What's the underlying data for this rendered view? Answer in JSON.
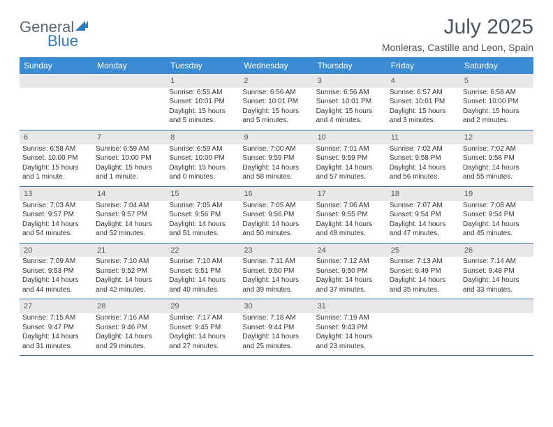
{
  "brand": {
    "part1": "General",
    "part2": "Blue"
  },
  "title": "July 2025",
  "location": "Monleras, Castille and Leon, Spain",
  "colors": {
    "header_bg": "#3b8bd4",
    "header_text": "#ffffff",
    "daynum_bg": "#e8e8e8",
    "separator": "#2e6fa8",
    "text": "#333333",
    "title_text": "#4a5560",
    "brand_gray": "#5a6670",
    "brand_blue": "#2e7cc0",
    "page_bg": "#ffffff"
  },
  "weekdays": [
    "Sunday",
    "Monday",
    "Tuesday",
    "Wednesday",
    "Thursday",
    "Friday",
    "Saturday"
  ],
  "weeks": [
    [
      null,
      null,
      {
        "n": "1",
        "sunrise": "Sunrise: 6:55 AM",
        "sunset": "Sunset: 10:01 PM",
        "daylight": "Daylight: 15 hours and 5 minutes."
      },
      {
        "n": "2",
        "sunrise": "Sunrise: 6:56 AM",
        "sunset": "Sunset: 10:01 PM",
        "daylight": "Daylight: 15 hours and 5 minutes."
      },
      {
        "n": "3",
        "sunrise": "Sunrise: 6:56 AM",
        "sunset": "Sunset: 10:01 PM",
        "daylight": "Daylight: 15 hours and 4 minutes."
      },
      {
        "n": "4",
        "sunrise": "Sunrise: 6:57 AM",
        "sunset": "Sunset: 10:01 PM",
        "daylight": "Daylight: 15 hours and 3 minutes."
      },
      {
        "n": "5",
        "sunrise": "Sunrise: 6:58 AM",
        "sunset": "Sunset: 10:00 PM",
        "daylight": "Daylight: 15 hours and 2 minutes."
      }
    ],
    [
      {
        "n": "6",
        "sunrise": "Sunrise: 6:58 AM",
        "sunset": "Sunset: 10:00 PM",
        "daylight": "Daylight: 15 hours and 1 minute."
      },
      {
        "n": "7",
        "sunrise": "Sunrise: 6:59 AM",
        "sunset": "Sunset: 10:00 PM",
        "daylight": "Daylight: 15 hours and 1 minute."
      },
      {
        "n": "8",
        "sunrise": "Sunrise: 6:59 AM",
        "sunset": "Sunset: 10:00 PM",
        "daylight": "Daylight: 15 hours and 0 minutes."
      },
      {
        "n": "9",
        "sunrise": "Sunrise: 7:00 AM",
        "sunset": "Sunset: 9:59 PM",
        "daylight": "Daylight: 14 hours and 58 minutes."
      },
      {
        "n": "10",
        "sunrise": "Sunrise: 7:01 AM",
        "sunset": "Sunset: 9:59 PM",
        "daylight": "Daylight: 14 hours and 57 minutes."
      },
      {
        "n": "11",
        "sunrise": "Sunrise: 7:02 AM",
        "sunset": "Sunset: 9:58 PM",
        "daylight": "Daylight: 14 hours and 56 minutes."
      },
      {
        "n": "12",
        "sunrise": "Sunrise: 7:02 AM",
        "sunset": "Sunset: 9:58 PM",
        "daylight": "Daylight: 14 hours and 55 minutes."
      }
    ],
    [
      {
        "n": "13",
        "sunrise": "Sunrise: 7:03 AM",
        "sunset": "Sunset: 9:57 PM",
        "daylight": "Daylight: 14 hours and 54 minutes."
      },
      {
        "n": "14",
        "sunrise": "Sunrise: 7:04 AM",
        "sunset": "Sunset: 9:57 PM",
        "daylight": "Daylight: 14 hours and 52 minutes."
      },
      {
        "n": "15",
        "sunrise": "Sunrise: 7:05 AM",
        "sunset": "Sunset: 9:56 PM",
        "daylight": "Daylight: 14 hours and 51 minutes."
      },
      {
        "n": "16",
        "sunrise": "Sunrise: 7:05 AM",
        "sunset": "Sunset: 9:56 PM",
        "daylight": "Daylight: 14 hours and 50 minutes."
      },
      {
        "n": "17",
        "sunrise": "Sunrise: 7:06 AM",
        "sunset": "Sunset: 9:55 PM",
        "daylight": "Daylight: 14 hours and 48 minutes."
      },
      {
        "n": "18",
        "sunrise": "Sunrise: 7:07 AM",
        "sunset": "Sunset: 9:54 PM",
        "daylight": "Daylight: 14 hours and 47 minutes."
      },
      {
        "n": "19",
        "sunrise": "Sunrise: 7:08 AM",
        "sunset": "Sunset: 9:54 PM",
        "daylight": "Daylight: 14 hours and 45 minutes."
      }
    ],
    [
      {
        "n": "20",
        "sunrise": "Sunrise: 7:09 AM",
        "sunset": "Sunset: 9:53 PM",
        "daylight": "Daylight: 14 hours and 44 minutes."
      },
      {
        "n": "21",
        "sunrise": "Sunrise: 7:10 AM",
        "sunset": "Sunset: 9:52 PM",
        "daylight": "Daylight: 14 hours and 42 minutes."
      },
      {
        "n": "22",
        "sunrise": "Sunrise: 7:10 AM",
        "sunset": "Sunset: 9:51 PM",
        "daylight": "Daylight: 14 hours and 40 minutes."
      },
      {
        "n": "23",
        "sunrise": "Sunrise: 7:11 AM",
        "sunset": "Sunset: 9:50 PM",
        "daylight": "Daylight: 14 hours and 39 minutes."
      },
      {
        "n": "24",
        "sunrise": "Sunrise: 7:12 AM",
        "sunset": "Sunset: 9:50 PM",
        "daylight": "Daylight: 14 hours and 37 minutes."
      },
      {
        "n": "25",
        "sunrise": "Sunrise: 7:13 AM",
        "sunset": "Sunset: 9:49 PM",
        "daylight": "Daylight: 14 hours and 35 minutes."
      },
      {
        "n": "26",
        "sunrise": "Sunrise: 7:14 AM",
        "sunset": "Sunset: 9:48 PM",
        "daylight": "Daylight: 14 hours and 33 minutes."
      }
    ],
    [
      {
        "n": "27",
        "sunrise": "Sunrise: 7:15 AM",
        "sunset": "Sunset: 9:47 PM",
        "daylight": "Daylight: 14 hours and 31 minutes."
      },
      {
        "n": "28",
        "sunrise": "Sunrise: 7:16 AM",
        "sunset": "Sunset: 9:46 PM",
        "daylight": "Daylight: 14 hours and 29 minutes."
      },
      {
        "n": "29",
        "sunrise": "Sunrise: 7:17 AM",
        "sunset": "Sunset: 9:45 PM",
        "daylight": "Daylight: 14 hours and 27 minutes."
      },
      {
        "n": "30",
        "sunrise": "Sunrise: 7:18 AM",
        "sunset": "Sunset: 9:44 PM",
        "daylight": "Daylight: 14 hours and 25 minutes."
      },
      {
        "n": "31",
        "sunrise": "Sunrise: 7:19 AM",
        "sunset": "Sunset: 9:43 PM",
        "daylight": "Daylight: 14 hours and 23 minutes."
      },
      null,
      null
    ]
  ]
}
